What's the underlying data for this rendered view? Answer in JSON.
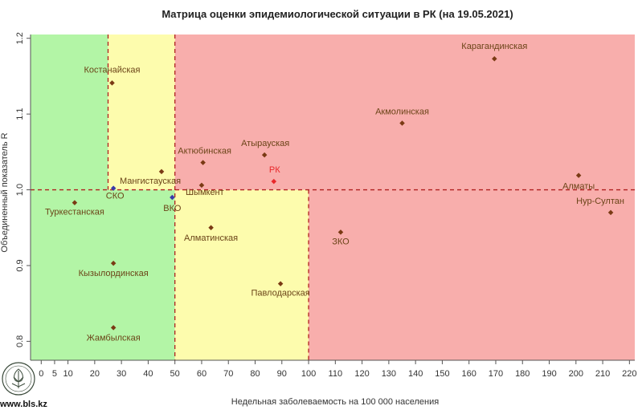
{
  "chart_data": {
    "type": "scatter",
    "title": "Матрица оценки эпидемиологической ситуации в РК (на 19.05.2021)",
    "xlabel": "Недельная заболеваемость на 100 000 населения",
    "ylabel": "Объединенный показатель R",
    "xlim": [
      -4,
      222
    ],
    "ylim": [
      0.775,
      1.205
    ],
    "x_ticks": [
      0,
      5,
      10,
      20,
      30,
      40,
      50,
      60,
      70,
      80,
      90,
      100,
      110,
      120,
      130,
      140,
      150,
      160,
      170,
      180,
      190,
      200,
      210,
      220
    ],
    "y_ticks": [
      0.8,
      0.9,
      1.0,
      1.1,
      1.2
    ],
    "thresholds": {
      "x": [
        25,
        50,
        100
      ],
      "y": 1.0
    },
    "zones": {
      "green": "#b3f5a6",
      "yellow": "#fdfcad",
      "red": "#f8aeac"
    },
    "grid": false,
    "legend": "none",
    "points": [
      {
        "name": "Костанайская",
        "x": 26.5,
        "y": 1.141,
        "color": "#7a3a14"
      },
      {
        "name": "СКО",
        "x": 27,
        "y": 1.002,
        "color": "#3a3aaa"
      },
      {
        "name": "Туркестанская",
        "x": 12.5,
        "y": 0.983,
        "color": "#7a3a14"
      },
      {
        "name": "Кызылординская",
        "x": 27,
        "y": 0.903,
        "color": "#7a3a14"
      },
      {
        "name": "Жамбылская",
        "x": 27,
        "y": 0.818,
        "color": "#7a3a14"
      },
      {
        "name": "Мангистауская",
        "x": 45,
        "y": 1.024,
        "color": "#7a3a14"
      },
      {
        "name": "ВКО",
        "x": 49,
        "y": 0.99,
        "color": "#3a3aaa"
      },
      {
        "name": "Актюбинская",
        "x": 60.5,
        "y": 1.036,
        "color": "#7a3a14"
      },
      {
        "name": "Шымкент",
        "x": 60,
        "y": 1.006,
        "color": "#7a3a14"
      },
      {
        "name": "Алматинская",
        "x": 63.5,
        "y": 0.95,
        "color": "#7a3a14"
      },
      {
        "name": "Атырауская",
        "x": 83.5,
        "y": 1.046,
        "color": "#7a3a14"
      },
      {
        "name": "РК",
        "x": 87,
        "y": 1.011,
        "color": "#e8282b"
      },
      {
        "name": "Павлодарская",
        "x": 89.5,
        "y": 0.876,
        "color": "#7a3a14"
      },
      {
        "name": "ЗКО",
        "x": 112,
        "y": 0.944,
        "color": "#7a3a14"
      },
      {
        "name": "Акмолинская",
        "x": 135,
        "y": 1.088,
        "color": "#7a3a14"
      },
      {
        "name": "Карагандинская",
        "x": 169.5,
        "y": 1.173,
        "color": "#7a3a14"
      },
      {
        "name": "Алматы",
        "x": 201,
        "y": 1.019,
        "color": "#7a3a14"
      },
      {
        "name": "Нур-Султан",
        "x": 213,
        "y": 0.97,
        "color": "#7a3a14"
      }
    ]
  },
  "footer": {
    "site": "www.bls.kz"
  }
}
